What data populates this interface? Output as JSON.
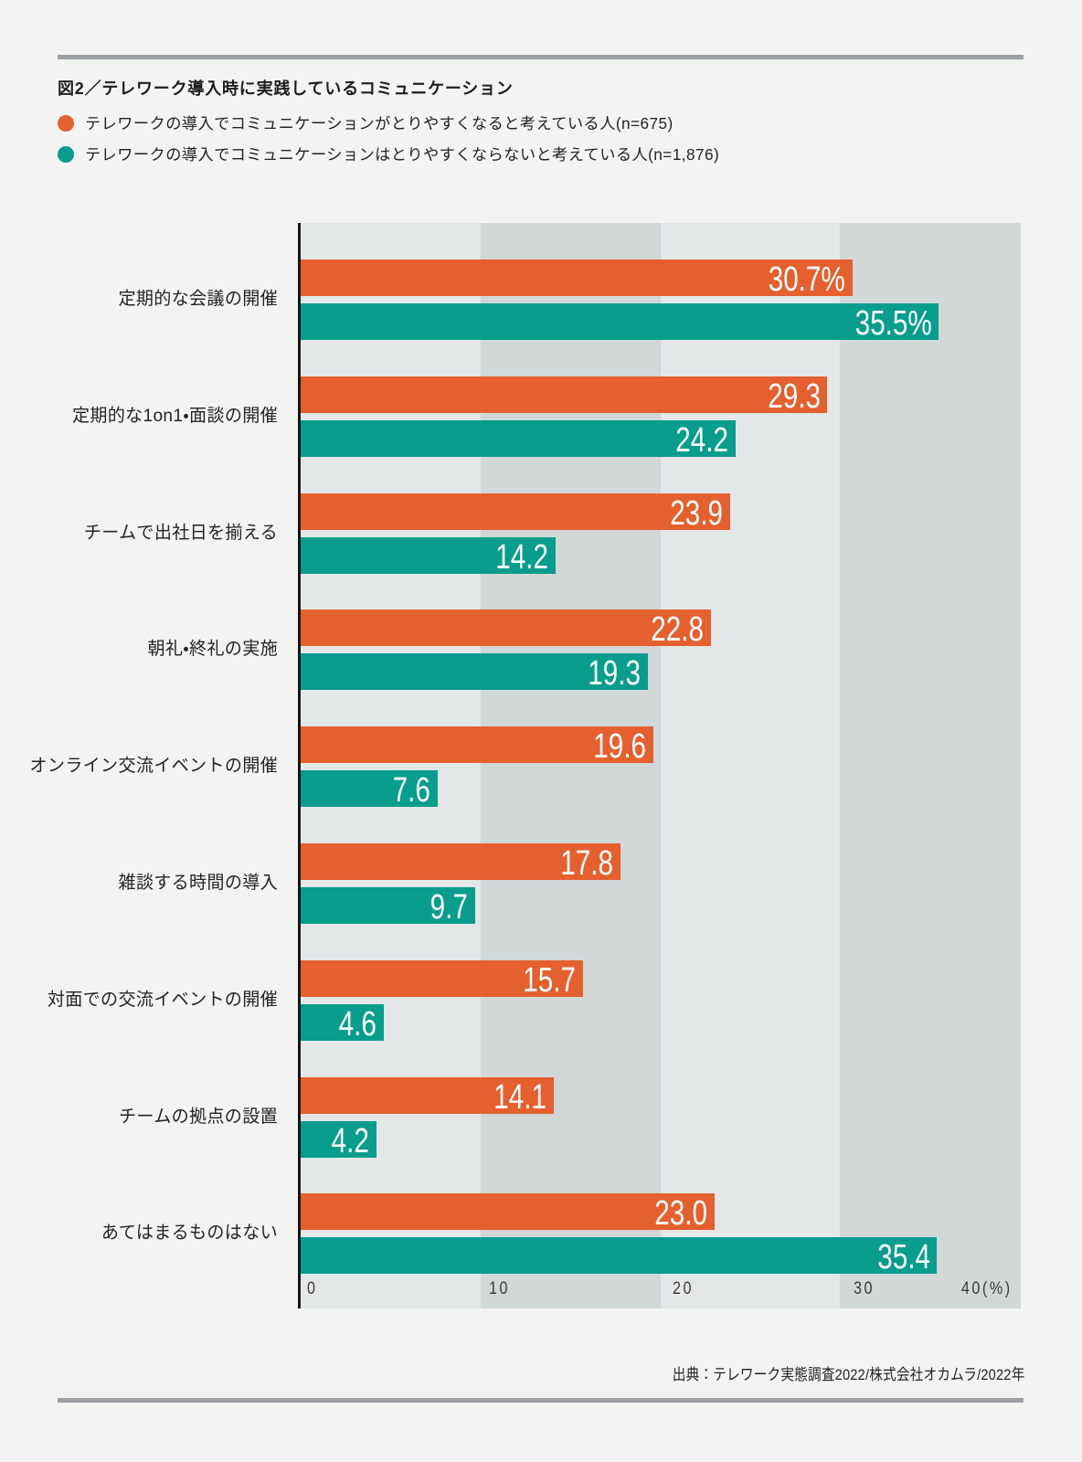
{
  "title": "図2／テレワーク導入時に実践しているコミュニケーション",
  "legend": [
    {
      "label": "テレワークの導入でコミュニケーションがとりやすくなると考えている人(n=675)",
      "color": "#e4602e"
    },
    {
      "label": "テレワークの導入でコミュニケーションはとりやすくならないと考えている人(n=1,876)",
      "color": "#089d8d"
    }
  ],
  "source": "出典：テレワーク実態調査2022/株式会社オカムラ/2022年",
  "chart_data": {
    "type": "bar",
    "orientation": "horizontal",
    "title": "図2／テレワーク導入時に実践しているコミュニケーション",
    "categories": [
      "定期的な会議の開催",
      "定期的な1on1・面談の開催",
      "チームで出社日を揃える",
      "朝礼・終礼の実施",
      "オンライン交流イベントの開催",
      "雑談する時間の導入",
      "対面での交流イベントの開催",
      "チームの拠点の設置",
      "あてはまるものはない"
    ],
    "series": [
      {
        "name": "テレワークの導入でコミュニケーションがとりやすくなると考えている人(n=675)",
        "color": "#e4602e",
        "values": [
          30.7,
          29.3,
          23.9,
          22.8,
          19.6,
          17.8,
          15.7,
          14.1,
          23.0
        ],
        "value_labels": [
          "30.7%",
          "29.3",
          "23.9",
          "22.8",
          "19.6",
          "17.8",
          "15.7",
          "14.1",
          "23.0"
        ]
      },
      {
        "name": "テレワークの導入でコミュニケーションはとりやすくならないと考えている人(n=1,876)",
        "color": "#089d8d",
        "values": [
          35.5,
          24.2,
          14.2,
          19.3,
          7.6,
          9.7,
          4.6,
          4.2,
          35.4
        ],
        "value_labels": [
          "35.5%",
          "24.2",
          "14.2",
          "19.3",
          "7.6",
          "9.7",
          "4.6",
          "4.2",
          "35.4"
        ]
      }
    ],
    "xlim": [
      0,
      40
    ],
    "x_ticks": [
      0,
      10,
      20,
      30,
      40
    ],
    "x_tick_labels": [
      "0",
      "10",
      "20",
      "30",
      "40(%)"
    ],
    "grid": "alternating-bands",
    "band_colors": [
      "#e3e7e7",
      "#d2d7d8"
    ],
    "legend_position": "top",
    "source": "出典：テレワーク実態調査2022/株式会社オカムラ/2022年"
  }
}
